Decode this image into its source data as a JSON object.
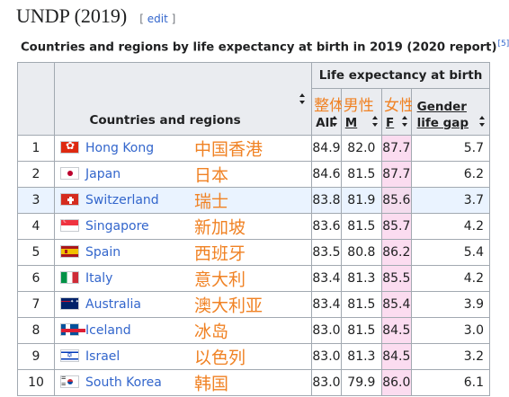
{
  "heading": {
    "title": "UNDP (2019)",
    "edit_open": "[",
    "edit_label": "edit",
    "edit_close": "]"
  },
  "caption": {
    "text": "Countries and regions by life expectancy at birth in 2019 (2020 report)",
    "ref": "[5]"
  },
  "table": {
    "group_header": "Life expectancy at birth",
    "countries_header": "Countries and regions",
    "columns": [
      {
        "zh": "整体",
        "en": "All"
      },
      {
        "zh": "男性",
        "en": "M"
      },
      {
        "zh": "女性",
        "en": "F"
      }
    ],
    "gap_header_line1": "Gender",
    "gap_header_line2": "life gap",
    "rows": [
      {
        "rank": "1",
        "flag": "hk",
        "name": "Hong Kong",
        "zh": "中国香港",
        "all": "84.9",
        "m": "82.0",
        "f": "87.7",
        "gap": "5.7"
      },
      {
        "rank": "2",
        "flag": "jp",
        "name": "Japan",
        "zh": "日本",
        "all": "84.6",
        "m": "81.5",
        "f": "87.7",
        "gap": "6.2"
      },
      {
        "rank": "3",
        "flag": "ch",
        "name": "Switzerland",
        "zh": "瑞士",
        "all": "83.8",
        "m": "81.9",
        "f": "85.6",
        "gap": "3.7"
      },
      {
        "rank": "4",
        "flag": "sg",
        "name": "Singapore",
        "zh": "新加坡",
        "all": "83.6",
        "m": "81.5",
        "f": "85.7",
        "gap": "4.2"
      },
      {
        "rank": "5",
        "flag": "es",
        "name": "Spain",
        "zh": "西班牙",
        "all": "83.5",
        "m": "80.8",
        "f": "86.2",
        "gap": "5.4"
      },
      {
        "rank": "6",
        "flag": "it",
        "name": "Italy",
        "zh": "意大利",
        "all": "83.4",
        "m": "81.3",
        "f": "85.5",
        "gap": "4.2"
      },
      {
        "rank": "7",
        "flag": "au",
        "name": "Australia",
        "zh": "澳大利亚",
        "all": "83.4",
        "m": "81.5",
        "f": "85.4",
        "gap": "3.9"
      },
      {
        "rank": "8",
        "flag": "is",
        "name": "Iceland",
        "zh": "冰岛",
        "all": "83.0",
        "m": "81.5",
        "f": "84.5",
        "gap": "3.0"
      },
      {
        "rank": "9",
        "flag": "il",
        "name": "Israel",
        "zh": "以色列",
        "all": "83.0",
        "m": "81.3",
        "f": "84.5",
        "gap": "3.2"
      },
      {
        "rank": "10",
        "flag": "kr",
        "name": "South Korea",
        "zh": "韩国",
        "all": "83.0",
        "m": "79.9",
        "f": "86.0",
        "gap": "6.1"
      }
    ],
    "highlighted_row": 2
  },
  "colors": {
    "link": "#3366cc",
    "annotation": "#f08224",
    "female_column": "#fbdcf0",
    "header_bg": "#eaecf0",
    "border": "#a2a9b1"
  }
}
